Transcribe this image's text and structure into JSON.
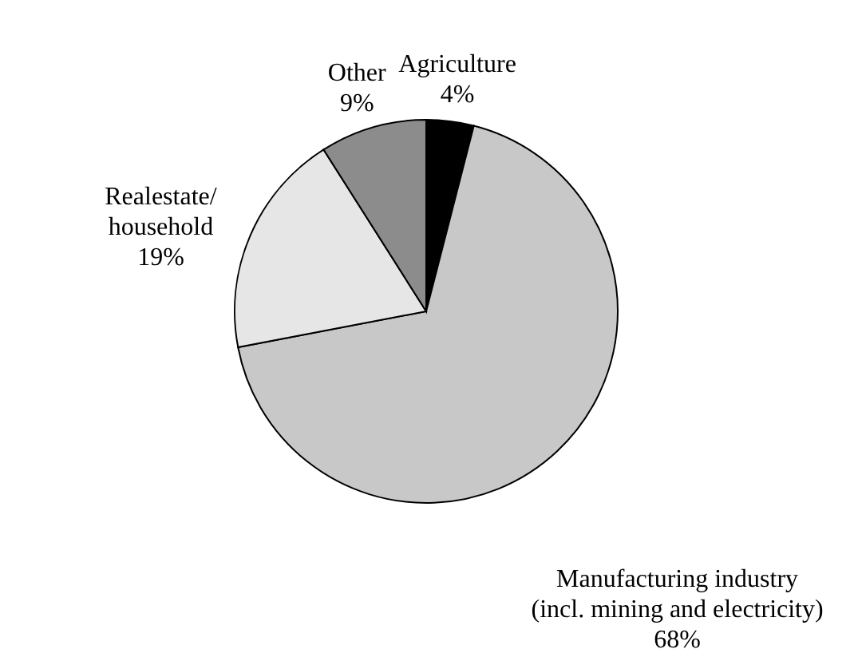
{
  "chart_data": {
    "type": "pie",
    "categories": [
      "Agriculture",
      "Manufacturing industry\n(incl. mining and electricity)",
      "Realestate/\nhousehold",
      "Other"
    ],
    "values": [
      4,
      68,
      19,
      9
    ],
    "value_labels": [
      "4%",
      "68%",
      "19%",
      "9%"
    ],
    "colors": [
      "#000000",
      "#c8c8c8",
      "#e6e6e6",
      "#8c8c8c"
    ]
  }
}
